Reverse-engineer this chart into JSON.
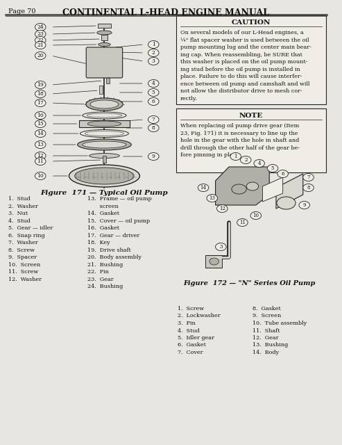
{
  "page_header_left": "Page 70",
  "page_header_center": "CONTINENTAL L-HEAD ENGINE MANUAL",
  "background_color": "#e8e6e0",
  "caution_title": "CAUTION",
  "caution_lines": [
    "On several models of our L-Head engines, a",
    "¼\" flat spacer washer is used between the oil",
    "pump mounting lug and the center main bear-",
    "ing cap. When reassembling, be SURE that",
    "this washer is placed on the oil pump mount-",
    "ing stud before the oil pump is installed in",
    "place. Failure to do this will cause interfer-",
    "ence between oil pump and camshaft and will",
    "not allow the distributor drive to mesh cor-",
    "rectly."
  ],
  "note_title": "NOTE",
  "note_lines": [
    "When replacing oil pump drive gear (Item",
    "23, Fig. 171) it is necessary to line up the",
    "hole in the gear with the hole in shaft and",
    "drill through the other half of the gear be-",
    "fore pinning in place."
  ],
  "fig171_caption": "Figure  171 — Typical Oil Pump",
  "fig172_caption": "Figure  172 — \"N\" Series Oil Pump",
  "parts_fig171_col1": [
    "1.  Stud",
    "2.  Washer",
    "3.  Nut",
    "4.  Stud",
    "5.  Gear — idler",
    "6.  Snap ring",
    "7.  Washer",
    "8.  Screw",
    "9.  Spacer",
    "10.  Screen",
    "11.  Screw",
    "12.  Washer"
  ],
  "parts_fig171_col2": [
    "13.  Frame — oil pump",
    "       screen",
    "14.  Gasket",
    "15.  Cover — oil pump",
    "16.  Gasket",
    "17.  Gear — driver",
    "18.  Key",
    "19.  Drive shaft",
    "20.  Body assembly",
    "21.  Bushing",
    "22.  Pin",
    "23.  Gear",
    "24.  Bushing"
  ],
  "parts_fig172_col1": [
    "1.  Screw",
    "2.  Lockwasher",
    "3.  Pin",
    "4.  Stud",
    "5.  Idler gear",
    "6.  Gasket",
    "7.  Cover"
  ],
  "parts_fig172_col2": [
    "8.  Gasket",
    "9.  Screen",
    "10.  Tube assembly",
    "11.  Shaft",
    "12.  Gear",
    "13.  Bushing",
    "14.  Body"
  ],
  "text_color": "#111111",
  "header_line_color": "#444444",
  "box_border_color": "#222222",
  "draw_color": "#222222",
  "draw_fill": "#c8c8c0",
  "draw_fill2": "#b0b0a8",
  "draw_fill3": "#d8d8d0"
}
